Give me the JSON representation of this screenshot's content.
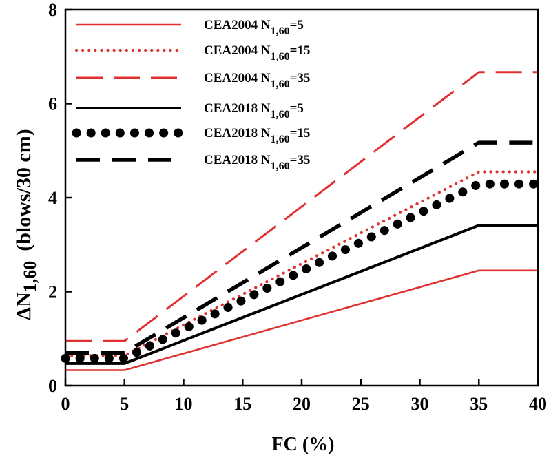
{
  "chart_data": {
    "type": "line",
    "xlabel": "FC (%)",
    "ylabel": {
      "prefix": "ΔN",
      "subscript": "1,60",
      "suffix": "(blows/30 cm)"
    },
    "xlim": [
      0,
      40
    ],
    "ylim": [
      0,
      8
    ],
    "xticks": [
      "0",
      "5",
      "10",
      "15",
      "20",
      "25",
      "30",
      "35",
      "40"
    ],
    "yticks": [
      "0",
      "2",
      "4",
      "6",
      "8"
    ],
    "grid": false,
    "legend_position": "top-left",
    "series": [
      {
        "name": "CEA2004 N1,60=5",
        "label": {
          "prefix": "CEA2004 N",
          "subscript": "1,60",
          "suffix": "=5"
        },
        "color": "#e03030",
        "style": "solid",
        "x": [
          0,
          5,
          35,
          40
        ],
        "y": [
          0.33,
          0.33,
          2.45,
          2.45
        ]
      },
      {
        "name": "CEA2004 N1,60=15",
        "label": {
          "prefix": "CEA2004 N",
          "subscript": "1,60",
          "suffix": "=15"
        },
        "color": "#e03030",
        "style": "dotted",
        "x": [
          0,
          5,
          35,
          40
        ],
        "y": [
          0.64,
          0.64,
          4.55,
          4.55
        ]
      },
      {
        "name": "CEA2004 N1,60=35",
        "label": {
          "prefix": "CEA2004 N",
          "subscript": "1,60",
          "suffix": "=35"
        },
        "color": "#e03030",
        "style": "dashed",
        "x": [
          0,
          5,
          35,
          40
        ],
        "y": [
          0.95,
          0.95,
          6.67,
          6.67
        ]
      },
      {
        "name": "CEA2018 N1,60=5",
        "label": {
          "prefix": "CEA2018 N",
          "subscript": "1,60",
          "suffix": "=5"
        },
        "color": "#000000",
        "style": "solid",
        "x": [
          0,
          5,
          35,
          40
        ],
        "y": [
          0.47,
          0.47,
          3.41,
          3.41
        ]
      },
      {
        "name": "CEA2018 N1,60=15",
        "label": {
          "prefix": "CEA2018 N",
          "subscript": "1,60",
          "suffix": "=15"
        },
        "color": "#000000",
        "style": "dots",
        "x": [
          0,
          5,
          35,
          40
        ],
        "y": [
          0.58,
          0.58,
          4.29,
          4.29
        ]
      },
      {
        "name": "CEA2018 N1,60=35",
        "label": {
          "prefix": "CEA2018 N",
          "subscript": "1,60",
          "suffix": "=35"
        },
        "color": "#000000",
        "style": "dashed",
        "x": [
          0,
          5,
          35,
          40
        ],
        "y": [
          0.7,
          0.7,
          5.17,
          5.17
        ]
      }
    ]
  }
}
